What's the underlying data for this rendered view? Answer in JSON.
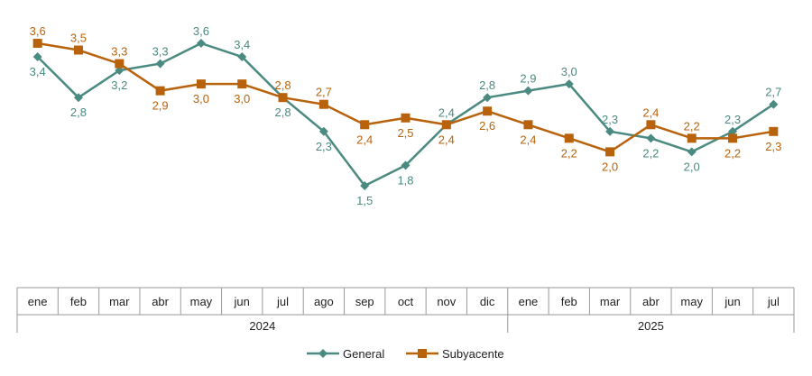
{
  "chart_data": {
    "type": "line",
    "categories": [
      "ene",
      "feb",
      "mar",
      "abr",
      "may",
      "jun",
      "jul",
      "ago",
      "sep",
      "oct",
      "nov",
      "dic",
      "ene",
      "feb",
      "mar",
      "abr",
      "may",
      "jun",
      "jul"
    ],
    "years": [
      {
        "label": "2024",
        "count": 12
      },
      {
        "label": "2025",
        "count": 7
      }
    ],
    "ylim": [
      1.0,
      3.8
    ],
    "series": [
      {
        "name": "General",
        "color": "#4a8a80",
        "marker": "diamond",
        "values": [
          3.4,
          2.8,
          3.2,
          3.3,
          3.6,
          3.4,
          2.8,
          2.3,
          1.5,
          1.8,
          2.4,
          2.8,
          2.9,
          3.0,
          2.3,
          2.2,
          2.0,
          2.3,
          2.7
        ],
        "labels": [
          "3,4",
          "2,8",
          "3,2",
          "3,3",
          "3,6",
          "3,4",
          "2,8",
          "2,3",
          "1,5",
          "1,8",
          "2,4",
          "2,8",
          "2,9",
          "3,0",
          "2,3",
          "2,2",
          "2,0",
          "2,3",
          "2,7"
        ]
      },
      {
        "name": "Subyacente",
        "color": "#b8620c",
        "marker": "square",
        "values": [
          3.6,
          3.5,
          3.3,
          2.9,
          3.0,
          3.0,
          2.8,
          2.7,
          2.4,
          2.5,
          2.4,
          2.6,
          2.4,
          2.2,
          2.0,
          2.4,
          2.2,
          2.2,
          2.3
        ],
        "labels": [
          "3,6",
          "3,5",
          "3,3",
          "2,9",
          "3,0",
          "3,0",
          "2,8",
          "2,7",
          "2,4",
          "2,5",
          "2,4",
          "2,6",
          "2,4",
          "2,2",
          "2,0",
          "2,4",
          "2,2",
          "2,2",
          "2,3"
        ]
      }
    ],
    "legend": [
      "General",
      "Subyacente"
    ],
    "legend_position": "bottom"
  }
}
